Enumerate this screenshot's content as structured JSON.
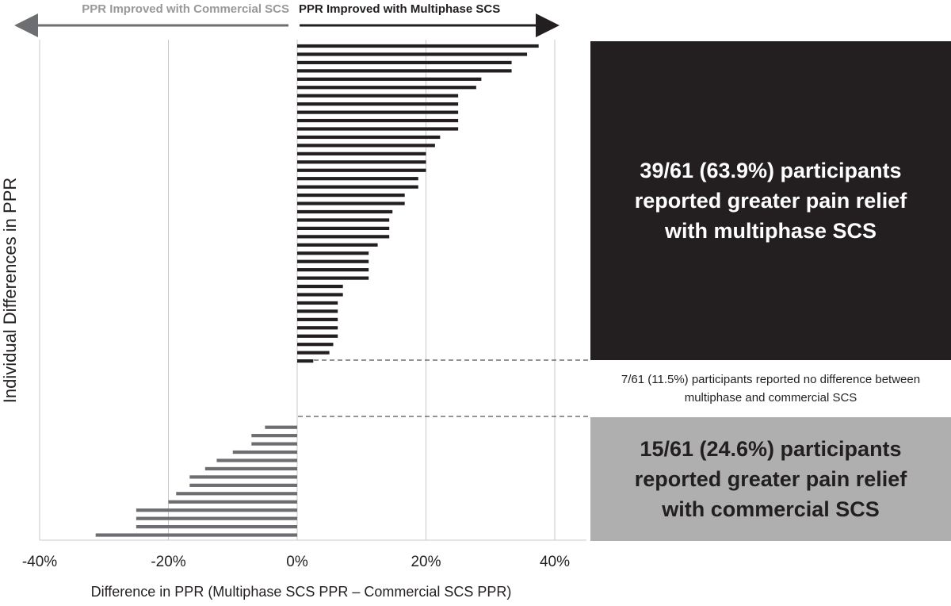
{
  "chart_data": {
    "type": "bar",
    "orientation": "horizontal",
    "xlabel": "Difference in PPR (Multiphase SCS PPR – Commercial SCS PPR)",
    "ylabel": "Individual Differences in PPR",
    "xlim": [
      -40,
      40
    ],
    "x_ticks": [
      -40,
      -20,
      0,
      20,
      40
    ],
    "x_tick_labels": [
      "-40%",
      "-20%",
      "0%",
      "20%",
      "40%"
    ],
    "grid": "vertical",
    "direction_labels": {
      "left": "PPR Improved with Commercial SCS",
      "right": "PPR Improved with Multiphase SCS"
    },
    "series": [
      {
        "values": [
          37.5,
          35.7,
          33.3,
          33.3,
          28.6,
          27.8,
          25.0,
          25.0,
          25.0,
          25.0,
          25.0,
          22.2,
          21.4,
          20.0,
          20.0,
          20.0,
          18.8,
          18.8,
          16.7,
          16.7,
          14.8,
          14.3,
          14.3,
          14.3,
          12.5,
          11.1,
          11.1,
          11.1,
          11.1,
          7.1,
          7.1,
          6.3,
          6.3,
          6.3,
          6.3,
          6.3,
          5.6,
          5.0,
          2.5,
          0,
          0,
          0,
          0,
          0,
          0,
          0,
          -5.0,
          -7.1,
          -7.1,
          -10.0,
          -12.5,
          -14.3,
          -16.7,
          -16.7,
          -18.8,
          -20.0,
          -25.0,
          -25.0,
          -25.0,
          -31.3,
          null
        ],
        "colors": {
          "positive": "#231f20",
          "negative": "#6d6e71"
        }
      }
    ],
    "annotations": [
      "39/61 (63.9%) participants reported greater pain relief with multiphase SCS",
      "7/61 (11.5%) participants reported no difference between multiphase and commercial SCS",
      "15/61 (24.6%) participants reported greater pain relief with commercial SCS"
    ]
  },
  "colors": {
    "positive_bar": "#231f20",
    "negative_bar": "#6d6e71",
    "grid": "#c8c8c8",
    "left_arrow": "#6d6e71",
    "right_arrow": "#231f20",
    "left_label": "#999999",
    "commercial_box": "#aeafae",
    "multiphase_box": "#231f20"
  },
  "annotations": {
    "multiphase_box": "39/61 (63.9%) participants reported greater pain relief with multiphase SCS",
    "nodiff_box": "7/61 (11.5%) participants reported no difference between multiphase and commercial SCS",
    "commercial_box": "15/61 (24.6%) participants reported greater pain relief with commercial SCS"
  }
}
